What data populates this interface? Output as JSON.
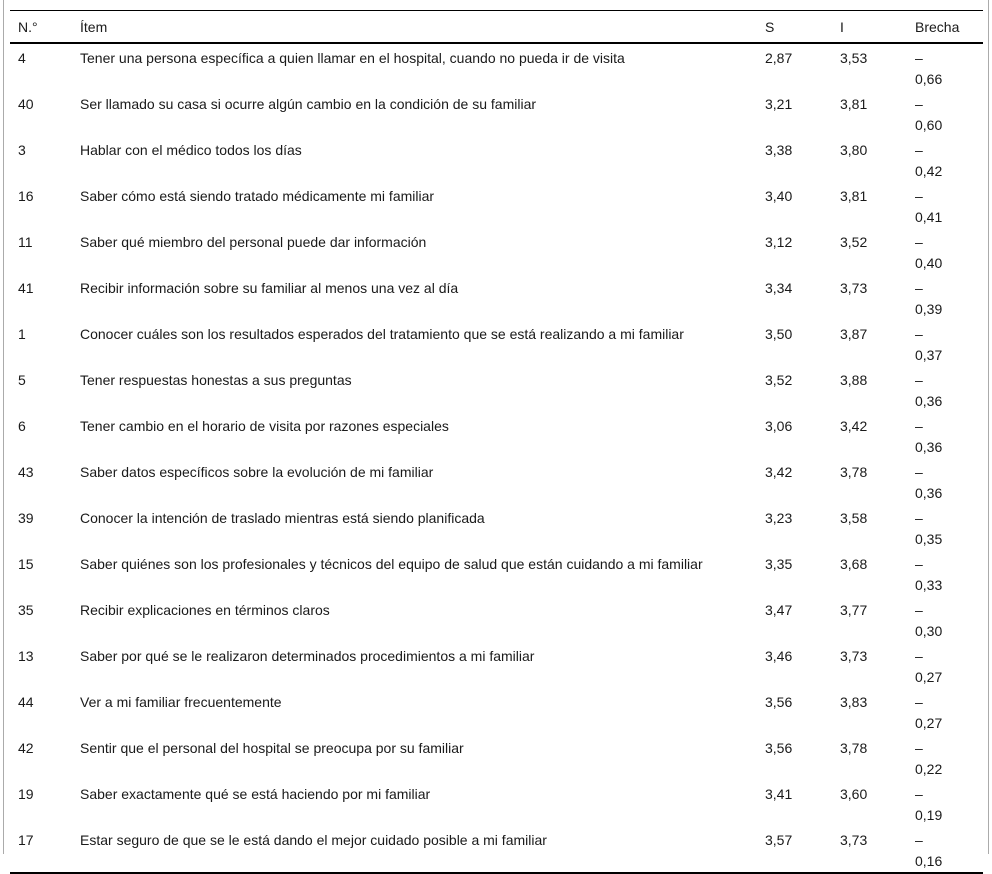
{
  "colors": {
    "text": "#1a1a1a",
    "rule": "#000000",
    "edge": "#ababab",
    "background": "#ffffff"
  },
  "table": {
    "columns": [
      "N.°",
      "Ítem",
      "S",
      "I",
      "Brecha"
    ],
    "rows": [
      {
        "num": "4",
        "item": "Tener una persona específica a quien llamar en el hospital, cuando no pueda ir de visita",
        "s": "2,87",
        "i": "3,53",
        "brecha_sign": "–",
        "brecha_value": "0,66"
      },
      {
        "num": "40",
        "item": "Ser llamado su casa si ocurre algún cambio en la condición de su familiar",
        "s": "3,21",
        "i": "3,81",
        "brecha_sign": "–",
        "brecha_value": "0,60"
      },
      {
        "num": "3",
        "item": "Hablar con el médico todos los días",
        "s": "3,38",
        "i": "3,80",
        "brecha_sign": "–",
        "brecha_value": "0,42"
      },
      {
        "num": "16",
        "item": "Saber cómo está siendo tratado médicamente mi familiar",
        "s": "3,40",
        "i": "3,81",
        "brecha_sign": "–",
        "brecha_value": "0,41"
      },
      {
        "num": "11",
        "item": "Saber qué miembro del personal puede dar información",
        "s": "3,12",
        "i": "3,52",
        "brecha_sign": "–",
        "brecha_value": "0,40"
      },
      {
        "num": "41",
        "item": "Recibir información sobre su familiar al menos una vez al día",
        "s": "3,34",
        "i": "3,73",
        "brecha_sign": "–",
        "brecha_value": "0,39"
      },
      {
        "num": "1",
        "item": "Conocer cuáles son los resultados esperados del tratamiento que se está realizando a mi familiar",
        "s": "3,50",
        "i": "3,87",
        "brecha_sign": "–",
        "brecha_value": "0,37"
      },
      {
        "num": "5",
        "item": "Tener respuestas honestas a sus preguntas",
        "s": "3,52",
        "i": "3,88",
        "brecha_sign": "–",
        "brecha_value": "0,36"
      },
      {
        "num": "6",
        "item": "Tener cambio en el horario de visita por razones especiales",
        "s": "3,06",
        "i": "3,42",
        "brecha_sign": "–",
        "brecha_value": "0,36"
      },
      {
        "num": "43",
        "item": "Saber datos específicos sobre la evolución de mi familiar",
        "s": "3,42",
        "i": "3,78",
        "brecha_sign": "–",
        "brecha_value": "0,36"
      },
      {
        "num": "39",
        "item": "Conocer la intención de traslado mientras está siendo planificada",
        "s": "3,23",
        "i": "3,58",
        "brecha_sign": "–",
        "brecha_value": "0,35"
      },
      {
        "num": "15",
        "item": "Saber quiénes son los profesionales y técnicos del equipo de salud que están cuidando a mi familiar",
        "s": "3,35",
        "i": "3,68",
        "brecha_sign": "–",
        "brecha_value": "0,33"
      },
      {
        "num": "35",
        "item": "Recibir explicaciones en términos claros",
        "s": "3,47",
        "i": "3,77",
        "brecha_sign": "–",
        "brecha_value": "0,30"
      },
      {
        "num": "13",
        "item": "Saber por qué se le realizaron determinados procedimientos a mi familiar",
        "s": "3,46",
        "i": "3,73",
        "brecha_sign": "–",
        "brecha_value": "0,27"
      },
      {
        "num": "44",
        "item": "Ver a mi familiar frecuentemente",
        "s": "3,56",
        "i": "3,83",
        "brecha_sign": "–",
        "brecha_value": "0,27"
      },
      {
        "num": "42",
        "item": "Sentir que el personal del hospital se preocupa por su familiar",
        "s": "3,56",
        "i": "3,78",
        "brecha_sign": "–",
        "brecha_value": "0,22"
      },
      {
        "num": "19",
        "item": "Saber exactamente qué se está haciendo por mi familiar",
        "s": "3,41",
        "i": "3,60",
        "brecha_sign": "–",
        "brecha_value": "0,19"
      },
      {
        "num": "17",
        "item": "Estar seguro de que se le está dando el mejor cuidado posible a mi familiar",
        "s": "3,57",
        "i": "3,73",
        "brecha_sign": "–",
        "brecha_value": "0,16"
      }
    ]
  }
}
